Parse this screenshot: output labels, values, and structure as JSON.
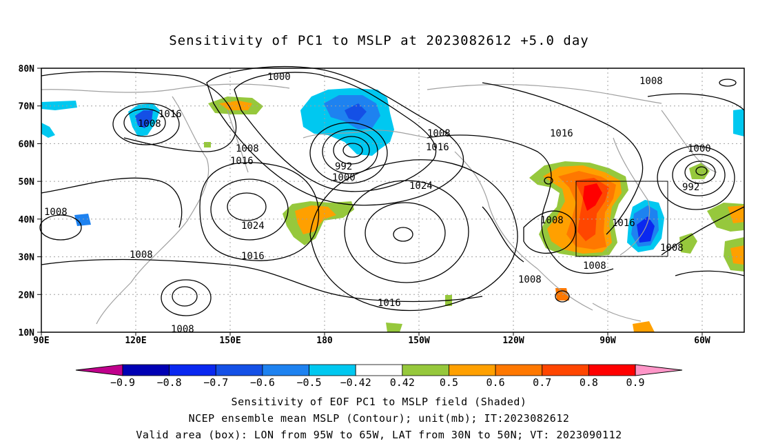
{
  "title": "Sensitivity of PC1 to MSLP at 2023082612 +5.0 day",
  "lat_ticks": [
    "80N",
    "70N",
    "60N",
    "50N",
    "40N",
    "30N",
    "20N",
    "10N"
  ],
  "lon_ticks": [
    "90E",
    "120E",
    "150E",
    "180",
    "150W",
    "120W",
    "90W",
    "60W"
  ],
  "contour_labels": [
    "1000",
    "1008",
    "1016",
    "1016",
    "1008",
    "1008",
    "1016",
    "992",
    "1000",
    "1008",
    "1016",
    "1024",
    "1016",
    "1000",
    "992",
    "1008",
    "1024",
    "1008",
    "1016",
    "1008",
    "1016",
    "1008",
    "1008",
    "1008",
    "1008",
    "1016"
  ],
  "colorbar": {
    "labels": [
      "-0.9",
      "-0.8",
      "-0.7",
      "-0.6",
      "-0.5",
      "-0.42",
      "0.42",
      "0.5",
      "0.6",
      "0.7",
      "0.8",
      "0.9"
    ],
    "colors": [
      "#c0008c",
      "#0000b4",
      "#0a28f0",
      "#1450e6",
      "#1e82f0",
      "#00c8f0",
      "#ffffff",
      "#96c83c",
      "#ffa000",
      "#ff7800",
      "#ff4600",
      "#ff0000",
      "#ff96c8"
    ]
  },
  "valid_box": {
    "lon_min": -95,
    "lon_max": -65,
    "lat_min": 30,
    "lat_max": 50
  },
  "captions": [
    "Sensitivity of EOF PC1 to MSLP field (Shaded)",
    "NCEP ensemble mean MSLP (Contour); unit(mb); IT:2023082612",
    "Valid area (box): LON from 95W to 65W, LAT from 30N to 50N; VT: 2023090112"
  ],
  "colors": {
    "land_outline": "#a0a0a0",
    "grid": "#a0a0a0",
    "contour": "#000000"
  }
}
